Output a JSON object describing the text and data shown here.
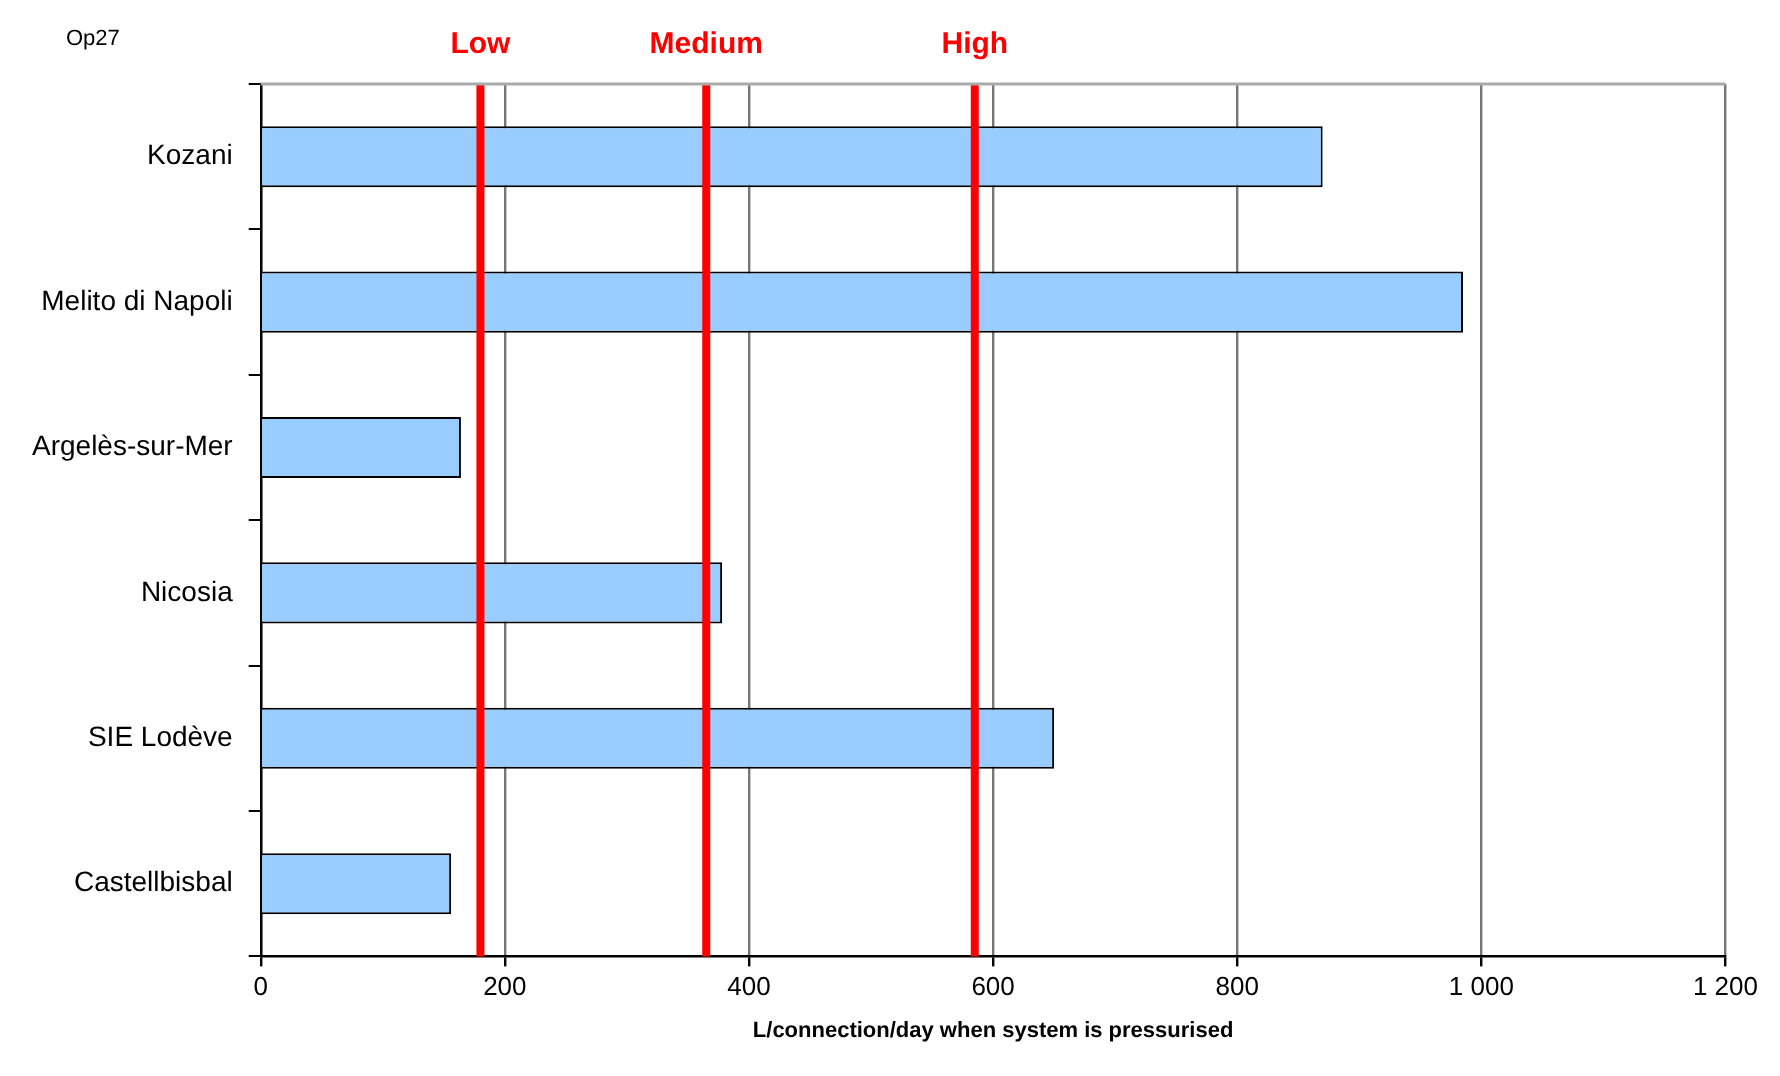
{
  "chart_data": {
    "type": "bar",
    "orientation": "horizontal",
    "categories": [
      "Kozani",
      "Melito di Napoli",
      "Argelès-sur-Mer",
      "Nicosia",
      "SIE Lodève",
      "Castellbisbal"
    ],
    "values": [
      870,
      985,
      164,
      378,
      650,
      156
    ],
    "color": "#99ccff",
    "xlabel": "L/connection/day when system is pressurised",
    "xlim": [
      0,
      1200
    ],
    "xticks": [
      0,
      200,
      400,
      600,
      800,
      {
        "value": 1000,
        "label": "1 000"
      },
      {
        "value": 1200,
        "label": "1 200"
      }
    ],
    "grid": "x",
    "ref_lines": [
      {
        "axis": "x",
        "value": 180,
        "label": "Low",
        "color": "#ff0000"
      },
      {
        "axis": "x",
        "value": 365,
        "label": "Medium",
        "color": "#ff0000"
      },
      {
        "axis": "x",
        "value": 585,
        "label": "High",
        "color": "#ff0000"
      }
    ],
    "annotations": [
      "Op27"
    ]
  }
}
